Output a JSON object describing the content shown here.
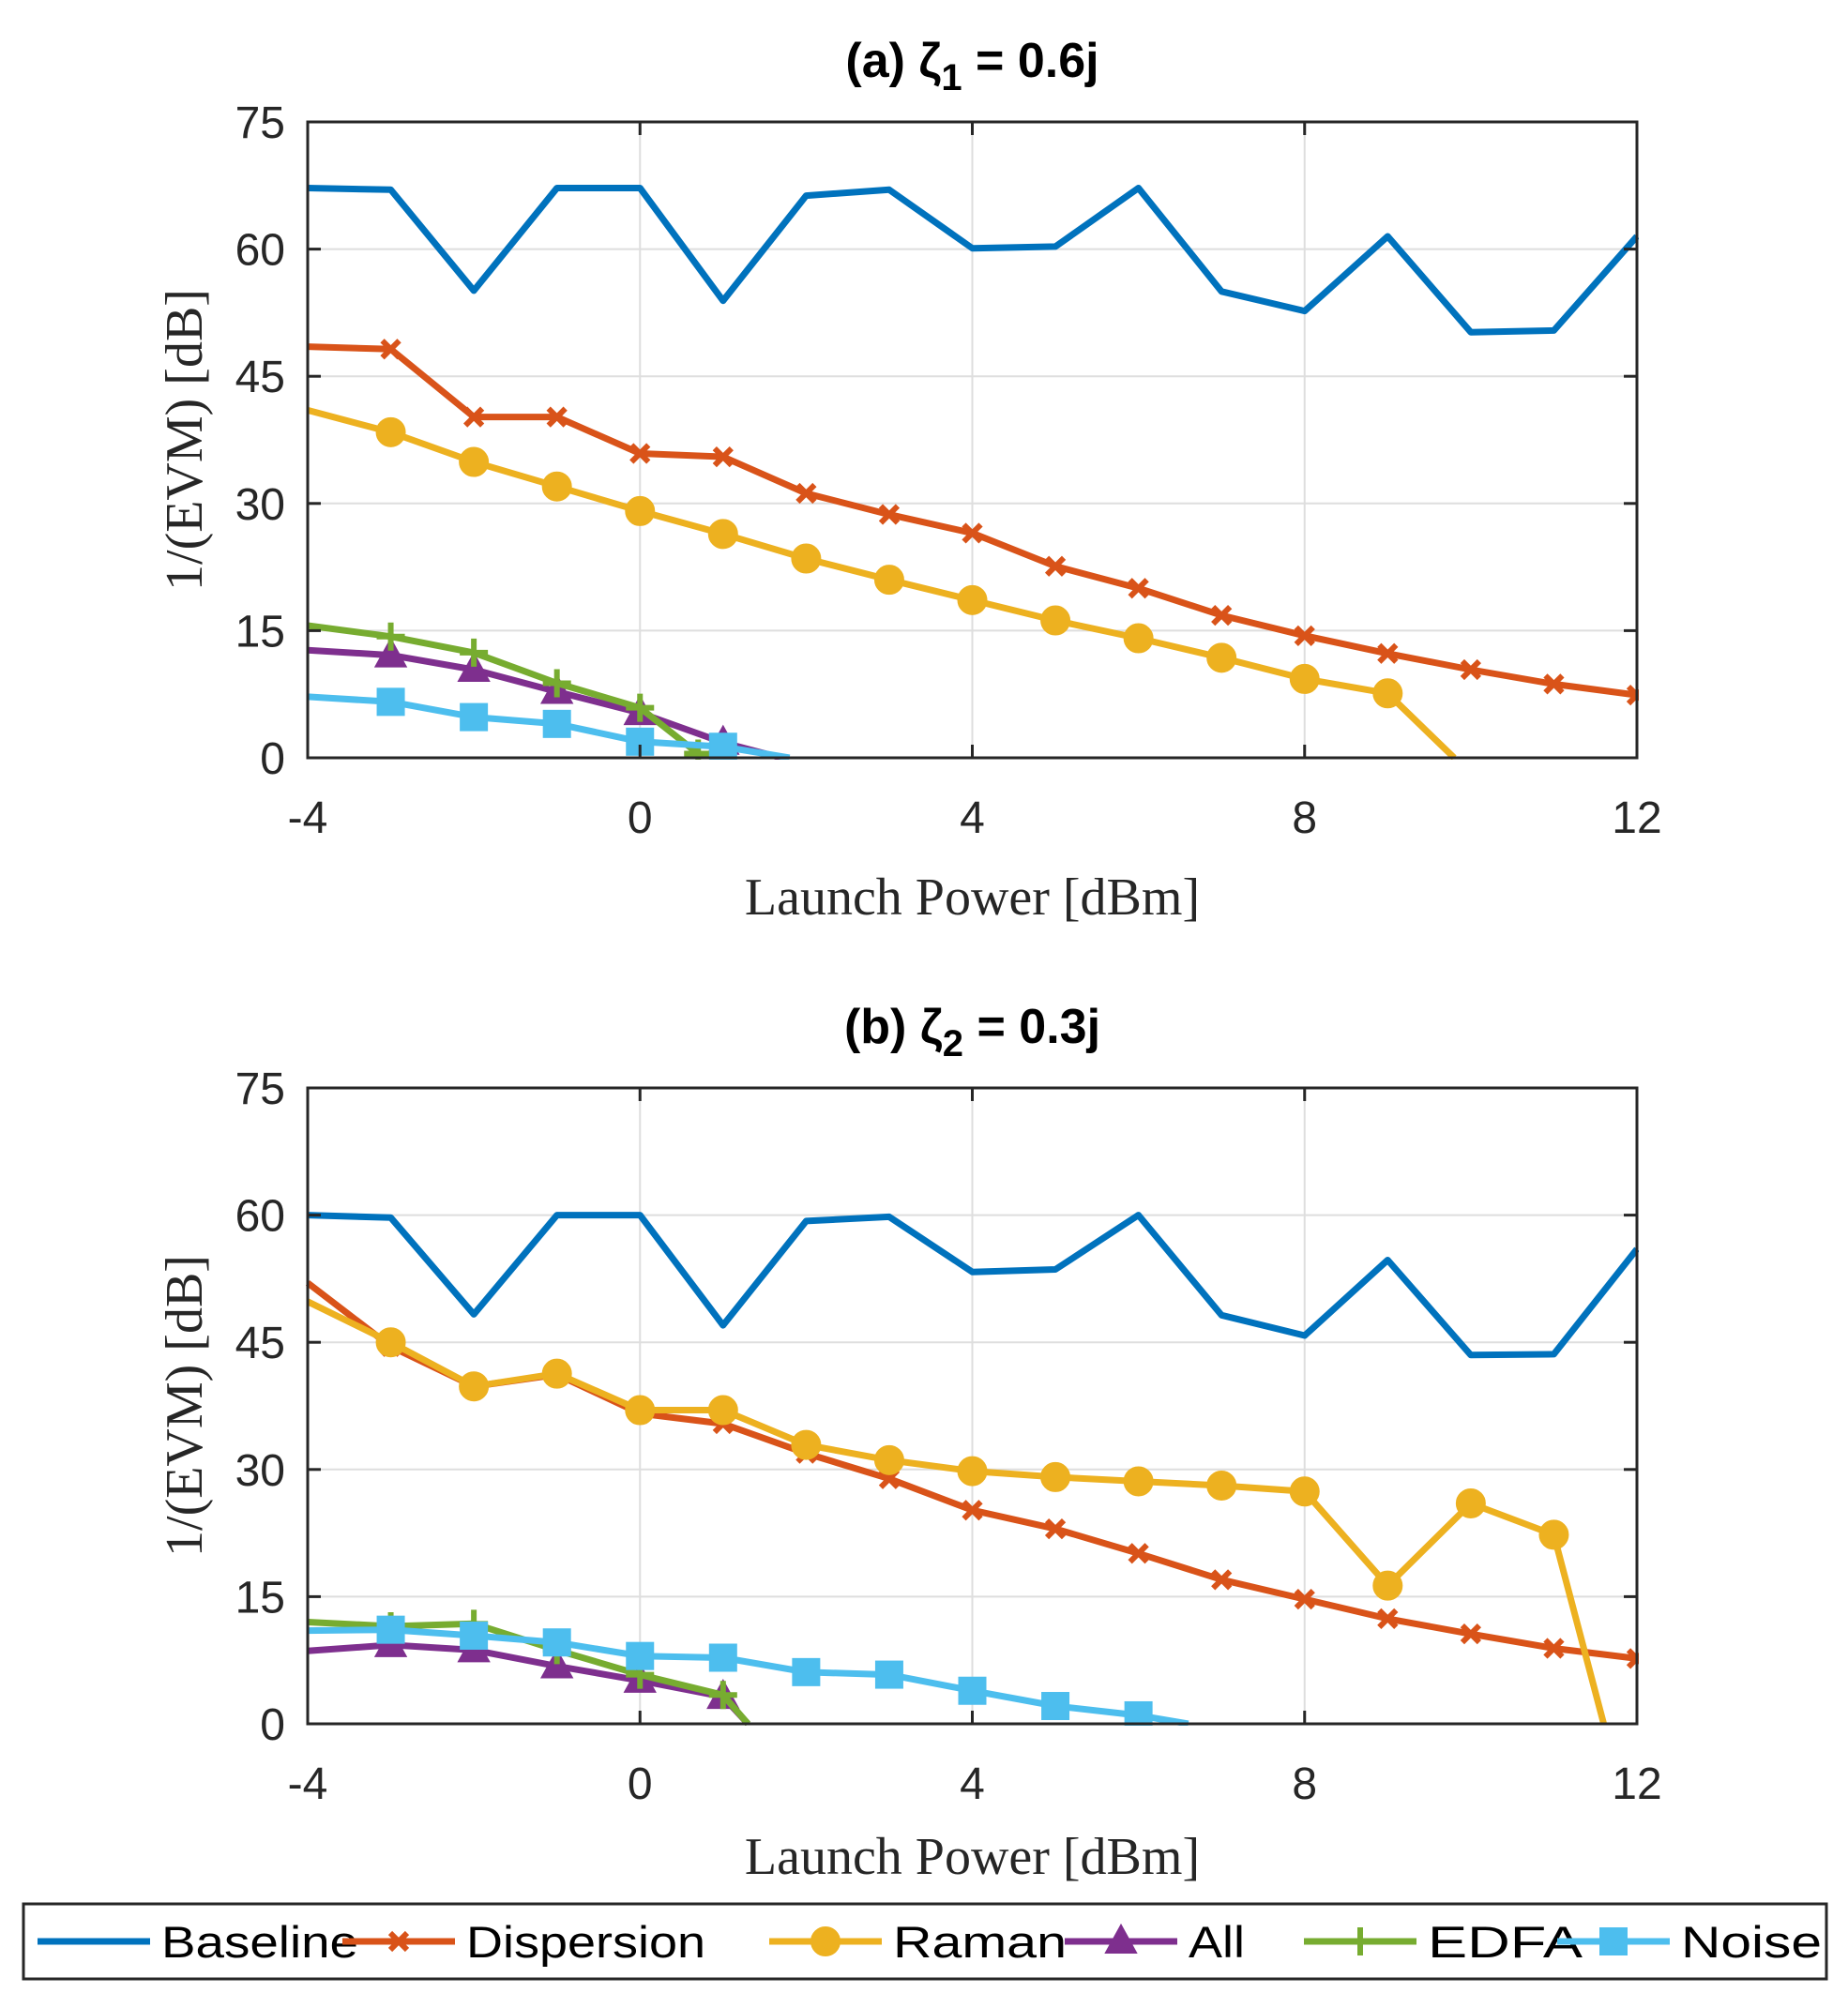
{
  "colors": {
    "Baseline": "#0072BD",
    "Dispersion": "#D95319",
    "Raman": "#EDB120",
    "All": "#7E2F8E",
    "EDFA": "#77AC30",
    "Noise": "#4DBEEE"
  },
  "legend": [
    {
      "name": "Baseline",
      "marker": "point"
    },
    {
      "name": "Dispersion",
      "marker": "x"
    },
    {
      "name": "Raman",
      "marker": "circle"
    },
    {
      "name": "All",
      "marker": "triangle"
    },
    {
      "name": "EDFA",
      "marker": "plus"
    },
    {
      "name": "Noise",
      "marker": "square"
    }
  ],
  "chart_data": [
    {
      "type": "line",
      "title": "(a) ζ",
      "title_sub": "1",
      "title_rest": " = 0.6j",
      "xlabel": "Launch Power [dBm]",
      "ylabel": "1/(EVM) [dB]",
      "xlim": [
        -4,
        12
      ],
      "ylim": [
        0,
        75
      ],
      "xticks": [
        -4,
        0,
        4,
        8,
        12
      ],
      "yticks": [
        0,
        15,
        30,
        45,
        60,
        75
      ],
      "grid": true,
      "series": [
        {
          "name": "Baseline",
          "marker": "point",
          "x": [
            -4,
            -3,
            -2,
            -1,
            0,
            1,
            2,
            3,
            4,
            5,
            6,
            7,
            8,
            9,
            10,
            11,
            12
          ],
          "y": [
            67.2,
            67.0,
            55.1,
            67.2,
            67.2,
            53.9,
            66.3,
            67.0,
            60.1,
            60.3,
            67.2,
            55.0,
            52.7,
            61.5,
            50.2,
            50.4,
            61.5
          ],
          "markers": []
        },
        {
          "name": "Dispersion",
          "marker": "x",
          "x": [
            -4,
            -3,
            -2,
            -1,
            0,
            1,
            2,
            3,
            4,
            5,
            6,
            7,
            8,
            9,
            10,
            11,
            12
          ],
          "y": [
            48.5,
            48.2,
            40.2,
            40.2,
            35.9,
            35.5,
            31.2,
            28.7,
            26.5,
            22.6,
            20.0,
            16.8,
            14.4,
            12.3,
            10.4,
            8.7,
            7.4
          ],
          "markers": [
            -3,
            -2,
            -1,
            0,
            1,
            2,
            3,
            4,
            5,
            6,
            7,
            8,
            9,
            10,
            11,
            12
          ]
        },
        {
          "name": "Raman",
          "marker": "circle",
          "x": [
            -4,
            -3,
            -2,
            -1,
            0,
            1,
            2,
            3,
            4,
            5,
            6,
            7,
            8,
            9,
            9.8
          ],
          "y": [
            41.0,
            38.4,
            34.9,
            32.0,
            29.1,
            26.4,
            23.5,
            21.0,
            18.6,
            16.2,
            14.1,
            11.8,
            9.3,
            7.6,
            0
          ],
          "markers": [
            -3,
            -2,
            -1,
            0,
            1,
            2,
            3,
            4,
            5,
            6,
            7,
            8,
            9
          ]
        },
        {
          "name": "All",
          "marker": "triangle",
          "x": [
            -4,
            -3,
            -2,
            -1,
            0,
            1,
            1.7
          ],
          "y": [
            12.7,
            12.1,
            10.4,
            7.8,
            5.3,
            1.8,
            0
          ],
          "markers": [
            -3,
            -2,
            -1,
            0,
            1
          ]
        },
        {
          "name": "EDFA",
          "marker": "plus",
          "x": [
            -4,
            -3,
            -2,
            -1,
            0,
            0.7
          ],
          "y": [
            15.6,
            14.3,
            12.4,
            8.8,
            5.9,
            0.5
          ],
          "markers": [
            -3,
            -2,
            -1,
            0,
            0.7
          ]
        },
        {
          "name": "Noise",
          "marker": "square",
          "x": [
            -4,
            -3,
            -2,
            -1,
            0,
            1,
            1.8
          ],
          "y": [
            7.2,
            6.6,
            4.8,
            4.0,
            1.9,
            1.3,
            0
          ],
          "markers": [
            -3,
            -2,
            -1,
            0,
            1
          ]
        }
      ]
    },
    {
      "type": "line",
      "title": "(b) ζ",
      "title_sub": "2",
      "title_rest": " = 0.3j",
      "xlabel": "Launch Power [dBm]",
      "ylabel": "1/(EVM) [dB]",
      "xlim": [
        -4,
        12
      ],
      "ylim": [
        0,
        75
      ],
      "xticks": [
        -4,
        0,
        4,
        8,
        12
      ],
      "yticks": [
        0,
        15,
        30,
        45,
        60,
        75
      ],
      "grid": true,
      "series": [
        {
          "name": "Baseline",
          "marker": "point",
          "x": [
            -4,
            -3,
            -2,
            -1,
            0,
            1,
            2,
            3,
            4,
            5,
            6,
            7,
            8,
            9,
            10,
            11,
            12
          ],
          "y": [
            60.0,
            59.7,
            48.3,
            60.0,
            60.0,
            47.0,
            59.3,
            59.8,
            53.3,
            53.6,
            60.0,
            48.2,
            45.8,
            54.7,
            43.5,
            43.6,
            56.0
          ],
          "markers": []
        },
        {
          "name": "Dispersion",
          "marker": "x",
          "x": [
            -4,
            -3,
            -2,
            -1,
            0,
            1,
            2,
            3,
            4,
            5,
            6,
            7,
            8,
            9,
            10,
            11,
            12
          ],
          "y": [
            52.0,
            44.5,
            39.8,
            41.2,
            36.6,
            35.4,
            31.9,
            28.9,
            25.2,
            23.0,
            20.1,
            17.0,
            14.7,
            12.4,
            10.6,
            8.9,
            7.7
          ],
          "markers": [
            -3,
            -2,
            -1,
            0,
            1,
            2,
            3,
            4,
            5,
            6,
            7,
            8,
            9,
            10,
            11,
            12
          ]
        },
        {
          "name": "Raman",
          "marker": "circle",
          "x": [
            -4,
            -3,
            -2,
            -1,
            0,
            1,
            2,
            3,
            4,
            5,
            6,
            7,
            8,
            9,
            10,
            11,
            11.6
          ],
          "y": [
            49.8,
            45.0,
            39.8,
            41.3,
            37.0,
            37.0,
            32.9,
            31.1,
            29.8,
            29.1,
            28.6,
            28.1,
            27.4,
            16.3,
            26.0,
            22.3,
            0
          ],
          "markers": [
            -3,
            -2,
            -1,
            0,
            1,
            2,
            3,
            4,
            5,
            6,
            7,
            8,
            9,
            10,
            11
          ]
        },
        {
          "name": "All",
          "marker": "triangle",
          "x": [
            -4,
            -3,
            -2,
            -1,
            0,
            1,
            1.3
          ],
          "y": [
            8.6,
            9.3,
            8.7,
            6.8,
            5.1,
            3.2,
            0
          ],
          "markers": [
            -3,
            -2,
            -1,
            0,
            1
          ]
        },
        {
          "name": "EDFA",
          "marker": "plus",
          "x": [
            -4,
            -3,
            -2,
            -1,
            0,
            1,
            1.3
          ],
          "y": [
            12.0,
            11.5,
            11.8,
            8.7,
            5.8,
            3.4,
            0
          ],
          "markers": [
            -3,
            -2,
            -1,
            0,
            1
          ]
        },
        {
          "name": "Noise",
          "marker": "square",
          "x": [
            -4,
            -3,
            -2,
            -1,
            0,
            1,
            2,
            3,
            4,
            5,
            6,
            6.6
          ],
          "y": [
            11.0,
            11.1,
            10.4,
            9.6,
            8.0,
            7.8,
            6.1,
            5.8,
            3.9,
            2.1,
            1.0,
            0
          ],
          "markers": [
            -3,
            -2,
            -1,
            0,
            1,
            2,
            3,
            4,
            5,
            6
          ]
        }
      ]
    }
  ]
}
